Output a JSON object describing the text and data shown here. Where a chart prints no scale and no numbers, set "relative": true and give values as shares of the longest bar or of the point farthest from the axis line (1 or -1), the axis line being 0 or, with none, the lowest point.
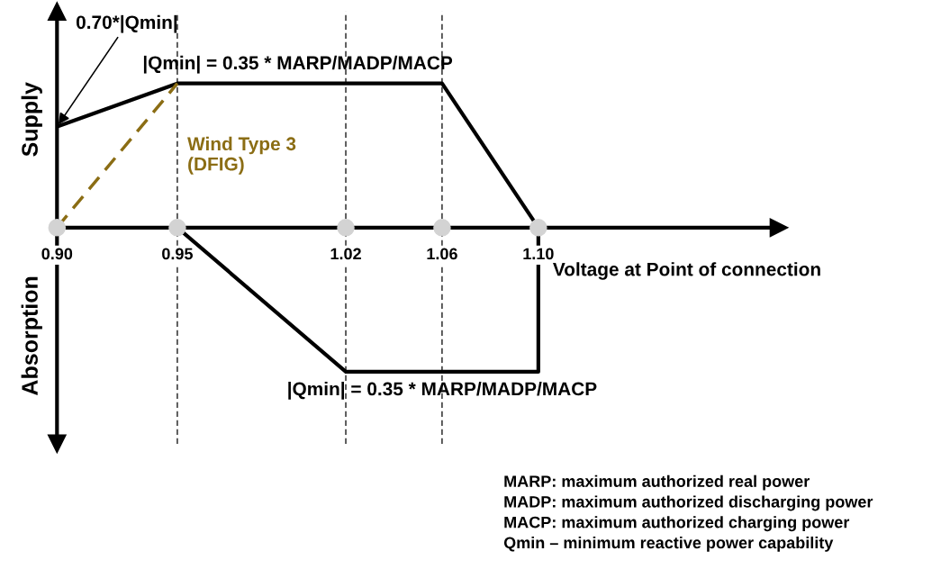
{
  "chart_data": {
    "type": "line",
    "relative": true,
    "xlabel": "Voltage at Point of connection",
    "xlim": [
      0.9,
      1.2
    ],
    "xticks": [
      {
        "value": 0.9,
        "label": "0.90"
      },
      0.95,
      1.02,
      1.06,
      {
        "value": 1.1,
        "label": "1.10"
      }
    ],
    "series": [
      {
        "color": "#000000",
        "x": [
          0.9,
          0.95,
          1.06,
          1.1
        ],
        "values": [
          0.7,
          1,
          1,
          0
        ],
        "line_style": "solid"
      },
      {
        "color": "#000000",
        "x": [
          0.95,
          1.02,
          1.1,
          1.1
        ],
        "values": [
          0,
          -1,
          -1,
          0
        ],
        "line_style": "solid"
      },
      {
        "name": "Wind Type 3\n(DFIG)",
        "color": "#8b6d14",
        "x": [
          0.9,
          0.95
        ],
        "values": [
          0,
          1
        ],
        "line_style": "dashed"
      },
      {
        "type": "scatter",
        "color": "#d3d3d3",
        "x": [
          0.9,
          0.95,
          1.02,
          1.06,
          1.1
        ],
        "values": [
          0,
          0,
          0,
          0,
          0
        ],
        "marker": "circle"
      }
    ],
    "ref_lines": [
      {
        "axis": "x",
        "value": 0.95,
        "line_style": "dashed"
      },
      {
        "axis": "x",
        "value": 1.02,
        "line_style": "dashed"
      },
      {
        "axis": "x",
        "value": 1.06,
        "line_style": "dashed"
      }
    ],
    "annotations": [
      {
        "text": "0.70*|Qmin|",
        "x": 0.9,
        "y": 0.7
      },
      {
        "text": "|Qmin| = 0.35 * MARP/MADP/MACP",
        "x": 1.0,
        "y": 1
      },
      {
        "text": "|Qmin| = 0.35 * MARP/MADP/MACP",
        "x": 1.06,
        "y": -1
      },
      "Supply",
      "Absorption",
      "MARP: maximum authorized real power",
      "MADP: maximum authorized discharging power",
      "MACP: maximum authorized charging power",
      "Qmin – minimum reactive power capability"
    ]
  }
}
